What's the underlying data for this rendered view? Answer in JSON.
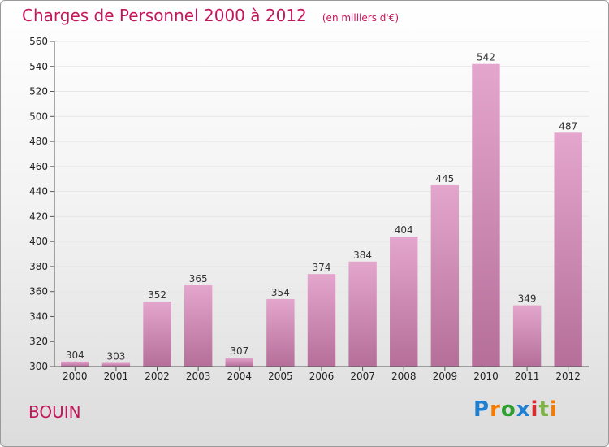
{
  "header": {
    "title": "Charges de Personnel 2000 à 2012",
    "subtitle": "(en milliers d'€)"
  },
  "footer": {
    "commune": "BOUIN",
    "logo_letters": [
      "P",
      "r",
      "o",
      "x",
      "i",
      "t",
      "i"
    ]
  },
  "colors": {
    "title": "#c2185b",
    "bar_top": "#e4a6cd",
    "bar_bottom": "#b56f99",
    "grid": "#e6e6e6"
  },
  "chart_data": {
    "type": "bar",
    "categories": [
      "2000",
      "2001",
      "2002",
      "2003",
      "2004",
      "2005",
      "2006",
      "2007",
      "2008",
      "2009",
      "2010",
      "2011",
      "2012"
    ],
    "values": [
      304,
      303,
      352,
      365,
      307,
      354,
      374,
      384,
      404,
      445,
      542,
      349,
      487
    ],
    "ylim": [
      300,
      560
    ],
    "yticks": [
      300,
      320,
      340,
      360,
      380,
      400,
      420,
      440,
      460,
      480,
      500,
      520,
      540,
      560
    ],
    "grid": true,
    "xlabel": "",
    "ylabel": ""
  }
}
